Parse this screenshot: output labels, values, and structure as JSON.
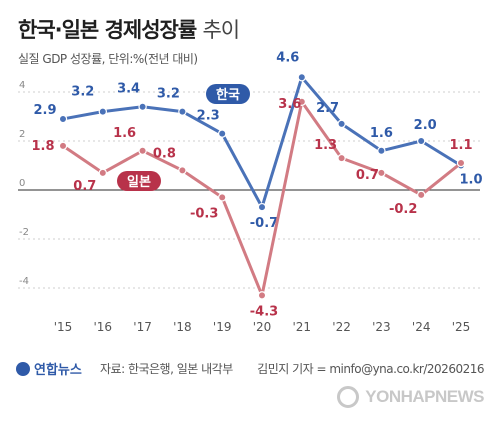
{
  "title_bold": "한국·일본 경제성장률",
  "title_light": "추이",
  "subtitle": "실질 GDP 성장률, 단위:%(전년 대비)",
  "source": "자료: 한국은행, 일본 내각부",
  "credit": "김민지 기자 = minfo@yna.co.kr/20260216",
  "brand": "연합뉴스",
  "watermark": "YONHAPNEWS",
  "colors": {
    "korea": "#4a72b8",
    "japan": "#d27b83",
    "korea_label": "#2f5aa8",
    "japan_label": "#b8324a"
  },
  "chart_data": {
    "type": "line",
    "categories": [
      "'15",
      "'16",
      "'17",
      "'18",
      "'19",
      "'20",
      "'21",
      "'22",
      "'23",
      "'24",
      "'25"
    ],
    "series": [
      {
        "name": "한국",
        "values": [
          2.9,
          3.2,
          3.4,
          3.2,
          2.3,
          -0.7,
          4.6,
          2.7,
          1.6,
          2.0,
          1.0
        ]
      },
      {
        "name": "일본",
        "values": [
          1.8,
          0.7,
          1.6,
          0.8,
          -0.3,
          -4.3,
          3.6,
          1.3,
          0.7,
          -0.2,
          1.1
        ]
      }
    ],
    "y_ticks": [
      4,
      2,
      0,
      -2,
      -4
    ],
    "ylim": [
      -5,
      5
    ],
    "grid": true,
    "legend": "inline labels"
  }
}
